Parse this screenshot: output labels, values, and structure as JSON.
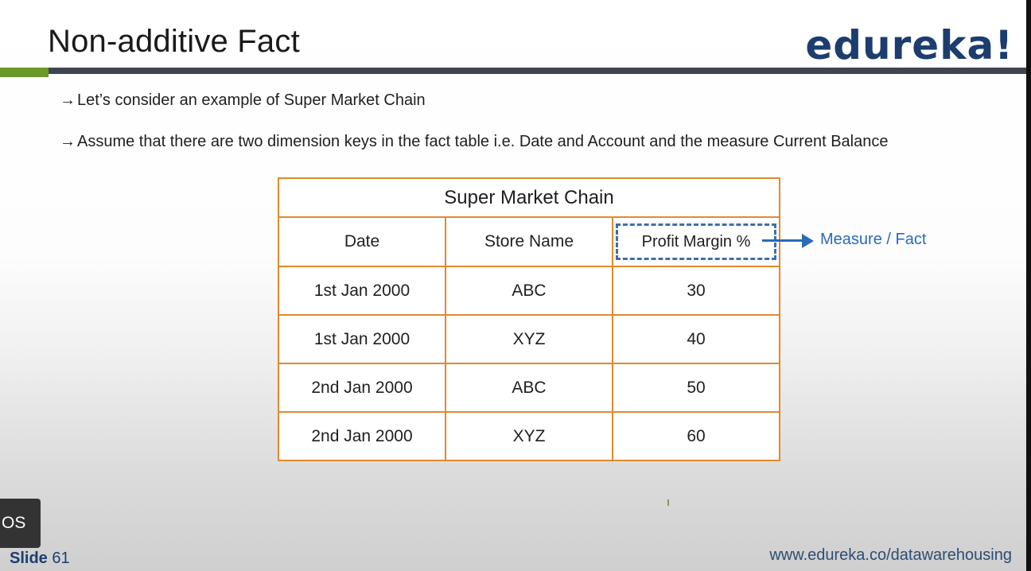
{
  "slide": {
    "title": "Non-additive Fact",
    "logo": "edureka!",
    "bullets": [
      {
        "arrow": "→",
        "text": "Let’s consider an example of Super Market Chain"
      },
      {
        "arrow": "→",
        "text": "Assume that there are two dimension keys in the fact table i.e. Date and Account and the measure Current Balance"
      }
    ],
    "table": {
      "caption": "Super Market Chain",
      "headers": [
        "Date",
        "Store Name",
        "Profit Margin %"
      ],
      "rows": [
        [
          "1st Jan 2000",
          "ABC",
          "30"
        ],
        [
          "1st Jan 2000",
          "XYZ",
          "40"
        ],
        [
          "2nd Jan 2000",
          "ABC",
          "50"
        ],
        [
          "2nd Jan 2000",
          "XYZ",
          "60"
        ]
      ]
    },
    "annotation": "Measure / Fact",
    "footer": {
      "slide_label": "Slide",
      "slide_number": "61",
      "url": "www.edureka.co/datawarehousing"
    }
  },
  "overlay": {
    "badge_text": "OS"
  },
  "colors": {
    "accent_green": "#6a9a2a",
    "rule_dark": "#3f4550",
    "table_border": "#e08a2e",
    "measure_blue": "#2a6ab8",
    "logo_navy": "#1c3d6e"
  }
}
